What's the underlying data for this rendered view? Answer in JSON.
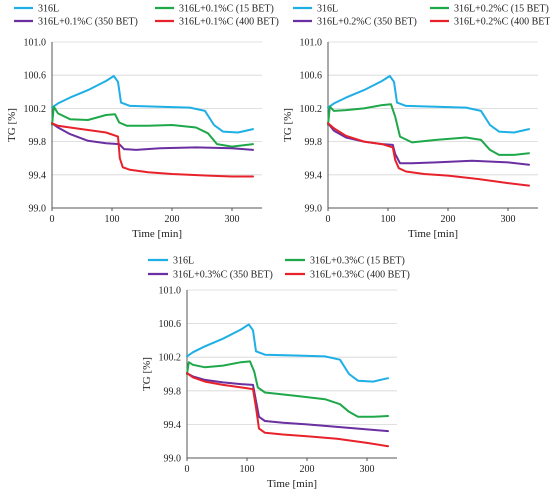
{
  "chart_data": [
    {
      "type": "line",
      "xlabel": "Time [min]",
      "ylabel": "TG [%]",
      "xlim": [
        0,
        350
      ],
      "ylim": [
        99.0,
        101.0
      ],
      "xticks": [
        0,
        100,
        200,
        300
      ],
      "yticks": [
        99.0,
        99.4,
        99.8,
        100.2,
        100.6,
        101.0
      ],
      "ytick_labels": [
        "99.0",
        "99.4",
        "99.8",
        "100.2",
        "100.6",
        "101.0"
      ],
      "xtick_labels": [
        "0",
        "100",
        "200",
        "300"
      ],
      "grid": true,
      "legend": "top",
      "series": [
        {
          "name": "316L",
          "color": "#1EAFE6",
          "x": [
            0,
            10,
            30,
            60,
            90,
            103,
            110,
            115,
            130,
            180,
            230,
            255,
            270,
            285,
            310,
            335
          ],
          "y": [
            100.21,
            100.26,
            100.33,
            100.42,
            100.53,
            100.59,
            100.52,
            100.27,
            100.23,
            100.22,
            100.21,
            100.17,
            100.0,
            99.92,
            99.91,
            99.95
          ]
        },
        {
          "name": "316L+0.1%C (15 BET)",
          "color": "#1EA84A",
          "x": [
            0,
            3,
            10,
            30,
            60,
            90,
            105,
            112,
            125,
            160,
            200,
            240,
            260,
            275,
            300,
            335
          ],
          "y": [
            100.0,
            100.22,
            100.14,
            100.07,
            100.06,
            100.12,
            100.13,
            100.03,
            99.99,
            99.99,
            100.0,
            99.97,
            99.9,
            99.77,
            99.74,
            99.77
          ]
        },
        {
          "name": "316L+0.1%C (350 BET)",
          "color": "#6A2FA0",
          "x": [
            0,
            10,
            30,
            60,
            90,
            112,
            120,
            140,
            180,
            240,
            300,
            335
          ],
          "y": [
            100.02,
            99.97,
            99.89,
            99.81,
            99.78,
            99.77,
            99.71,
            99.7,
            99.72,
            99.73,
            99.72,
            99.7
          ]
        },
        {
          "name": "316L+0.1%C (400 BET)",
          "color": "#E8222A",
          "x": [
            0,
            10,
            30,
            60,
            90,
            110,
            113,
            118,
            130,
            160,
            200,
            260,
            300,
            335
          ],
          "y": [
            100.02,
            99.99,
            99.97,
            99.94,
            99.91,
            99.86,
            99.6,
            99.49,
            99.46,
            99.43,
            99.41,
            99.39,
            99.38,
            99.38
          ]
        }
      ]
    },
    {
      "type": "line",
      "xlabel": "Time [min]",
      "ylabel": "TG [%]",
      "xlim": [
        0,
        350
      ],
      "ylim": [
        99.0,
        101.0
      ],
      "xticks": [
        0,
        100,
        200,
        300
      ],
      "yticks": [
        99.0,
        99.4,
        99.8,
        100.2,
        100.6,
        101.0
      ],
      "ytick_labels": [
        "99.0",
        "99.4",
        "99.8",
        "100.2",
        "100.6",
        "101.0"
      ],
      "xtick_labels": [
        "0",
        "100",
        "200",
        "300"
      ],
      "grid": true,
      "legend": "top",
      "series": [
        {
          "name": "316L",
          "color": "#1EAFE6",
          "x": [
            0,
            10,
            30,
            60,
            90,
            103,
            110,
            115,
            130,
            180,
            230,
            255,
            270,
            285,
            310,
            335
          ],
          "y": [
            100.21,
            100.26,
            100.33,
            100.42,
            100.53,
            100.59,
            100.52,
            100.27,
            100.23,
            100.22,
            100.21,
            100.17,
            100.0,
            99.92,
            99.91,
            99.95
          ]
        },
        {
          "name": "316L+0.2%C (15 BET)",
          "color": "#1EA84A",
          "x": [
            0,
            3,
            10,
            30,
            60,
            90,
            105,
            112,
            120,
            140,
            180,
            230,
            255,
            270,
            285,
            310,
            335
          ],
          "y": [
            100.0,
            100.22,
            100.17,
            100.18,
            100.2,
            100.24,
            100.25,
            100.1,
            99.86,
            99.79,
            99.82,
            99.85,
            99.82,
            99.7,
            99.64,
            99.64,
            99.66
          ]
        },
        {
          "name": "316L+0.2%C (350 BET)",
          "color": "#6A2FA0",
          "x": [
            0,
            10,
            30,
            60,
            90,
            108,
            112,
            120,
            140,
            180,
            240,
            300,
            335
          ],
          "y": [
            100.02,
            99.93,
            99.85,
            99.8,
            99.77,
            99.76,
            99.65,
            99.54,
            99.54,
            99.55,
            99.57,
            99.55,
            99.52
          ]
        },
        {
          "name": "316L+0.2%C (400 BET)",
          "color": "#E8222A",
          "x": [
            0,
            10,
            30,
            60,
            90,
            108,
            112,
            118,
            130,
            160,
            200,
            250,
            300,
            335
          ],
          "y": [
            100.02,
            99.96,
            99.87,
            99.8,
            99.77,
            99.73,
            99.58,
            99.48,
            99.44,
            99.41,
            99.39,
            99.35,
            99.3,
            99.27
          ]
        }
      ]
    },
    {
      "type": "line",
      "xlabel": "Time [min]",
      "ylabel": "TG [%]",
      "xlim": [
        0,
        350
      ],
      "ylim": [
        99.0,
        101.0
      ],
      "xticks": [
        0,
        100,
        200,
        300
      ],
      "yticks": [
        99.0,
        99.4,
        99.8,
        100.2,
        100.6,
        101.0
      ],
      "ytick_labels": [
        "99.0",
        "99.4",
        "99.8",
        "100.2",
        "100.6",
        "101.0"
      ],
      "xtick_labels": [
        "0",
        "100",
        "200",
        "300"
      ],
      "grid": true,
      "legend": "top",
      "series": [
        {
          "name": "316L",
          "color": "#1EAFE6",
          "x": [
            0,
            10,
            30,
            60,
            90,
            103,
            110,
            115,
            130,
            180,
            230,
            255,
            270,
            285,
            310,
            335
          ],
          "y": [
            100.21,
            100.26,
            100.33,
            100.42,
            100.53,
            100.59,
            100.52,
            100.27,
            100.23,
            100.22,
            100.21,
            100.17,
            100.0,
            99.92,
            99.91,
            99.95
          ]
        },
        {
          "name": "316L+0.3%C (15 BET)",
          "color": "#1EA84A",
          "x": [
            0,
            3,
            10,
            30,
            60,
            90,
            105,
            112,
            118,
            130,
            180,
            230,
            255,
            270,
            285,
            310,
            335
          ],
          "y": [
            100.0,
            100.14,
            100.11,
            100.08,
            100.1,
            100.14,
            100.15,
            100.03,
            99.84,
            99.78,
            99.74,
            99.7,
            99.64,
            99.55,
            99.49,
            99.49,
            99.5
          ]
        },
        {
          "name": "316L+0.3%C (350 BET)",
          "color": "#6A2FA0",
          "x": [
            0,
            10,
            30,
            60,
            90,
            110,
            115,
            120,
            130,
            160,
            200,
            250,
            300,
            335
          ],
          "y": [
            100.01,
            99.97,
            99.93,
            99.9,
            99.88,
            99.87,
            99.68,
            99.49,
            99.44,
            99.42,
            99.4,
            99.37,
            99.34,
            99.32
          ]
        },
        {
          "name": "316L+0.3%C (400 BET)",
          "color": "#E8222A",
          "x": [
            0,
            10,
            30,
            60,
            90,
            110,
            115,
            120,
            130,
            160,
            200,
            250,
            300,
            335
          ],
          "y": [
            100.01,
            99.96,
            99.91,
            99.87,
            99.84,
            99.82,
            99.6,
            99.35,
            99.3,
            99.28,
            99.26,
            99.23,
            99.18,
            99.14
          ]
        }
      ]
    }
  ]
}
